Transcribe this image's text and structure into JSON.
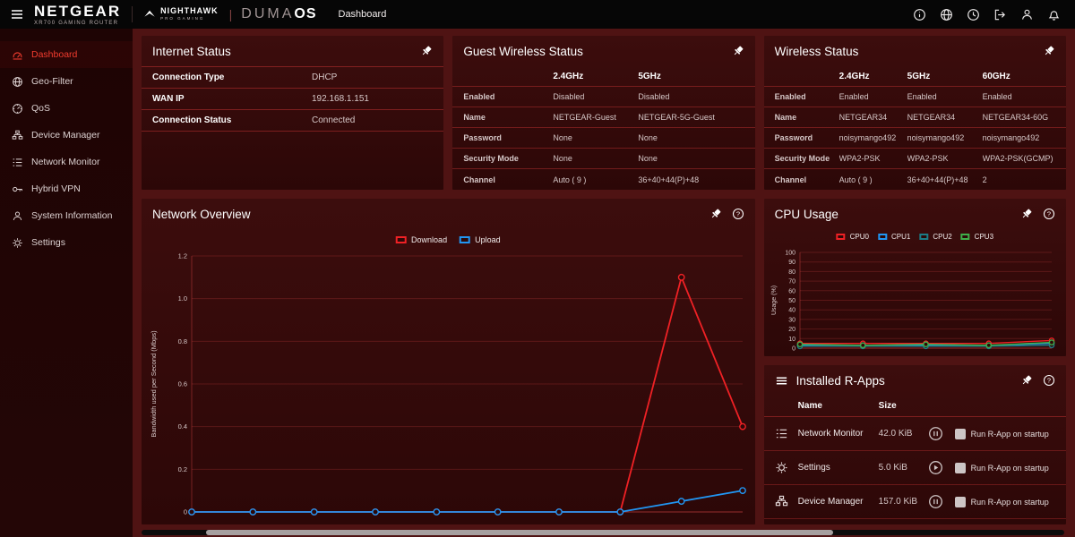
{
  "topbar": {
    "brand": {
      "netgear": "NETGEAR",
      "model": "XR700 GAMING ROUTER",
      "nighthawk": "NIGHTHAWK",
      "nighthawk_sub": "PRO GAMING",
      "duma": "DUMA",
      "os": "OS"
    },
    "page_title": "Dashboard",
    "icons": [
      {
        "name": "info-icon"
      },
      {
        "name": "language-globe-icon"
      },
      {
        "name": "history-icon"
      },
      {
        "name": "logout-icon"
      },
      {
        "name": "account-icon"
      },
      {
        "name": "notifications-bell-icon"
      }
    ]
  },
  "sidebar": {
    "items": [
      {
        "label": "Dashboard",
        "icon": "dashboard-icon",
        "active": true
      },
      {
        "label": "Geo-Filter",
        "icon": "geo-filter-icon",
        "active": false
      },
      {
        "label": "QoS",
        "icon": "qos-icon",
        "active": false
      },
      {
        "label": "Device Manager",
        "icon": "device-manager-icon",
        "active": false
      },
      {
        "label": "Network Monitor",
        "icon": "network-monitor-icon",
        "active": false
      },
      {
        "label": "Hybrid VPN",
        "icon": "vpn-icon",
        "active": false
      },
      {
        "label": "System Information",
        "icon": "system-info-icon",
        "active": false
      },
      {
        "label": "Settings",
        "icon": "settings-icon",
        "active": false
      }
    ]
  },
  "panels": {
    "internet_status": {
      "title": "Internet Status",
      "rows": [
        {
          "label": "Connection Type",
          "value": "DHCP"
        },
        {
          "label": "WAN IP",
          "value": "192.168.1.151"
        },
        {
          "label": "Connection Status",
          "value": "Connected"
        }
      ]
    },
    "guest_wireless": {
      "title": "Guest Wireless Status",
      "columns": [
        "2.4GHz",
        "5GHz"
      ],
      "rows": [
        {
          "label": "Enabled",
          "values": [
            "Disabled",
            "Disabled"
          ]
        },
        {
          "label": "Name",
          "values": [
            "NETGEAR-Guest",
            "NETGEAR-5G-Guest"
          ]
        },
        {
          "label": "Password",
          "values": [
            "None",
            "None"
          ]
        },
        {
          "label": "Security Mode",
          "values": [
            "None",
            "None"
          ]
        },
        {
          "label": "Channel",
          "values": [
            "Auto ( 9 )",
            "36+40+44(P)+48"
          ]
        }
      ]
    },
    "wireless": {
      "title": "Wireless Status",
      "columns": [
        "2.4GHz",
        "5GHz",
        "60GHz"
      ],
      "rows": [
        {
          "label": "Enabled",
          "values": [
            "Enabled",
            "Enabled",
            "Enabled"
          ]
        },
        {
          "label": "Name",
          "values": [
            "NETGEAR34",
            "NETGEAR34",
            "NETGEAR34-60G"
          ]
        },
        {
          "label": "Password",
          "values": [
            "noisymango492",
            "noisymango492",
            "noisymango492"
          ]
        },
        {
          "label": "Security Mode",
          "values": [
            "WPA2-PSK",
            "WPA2-PSK",
            "WPA2-PSK(GCMP)"
          ]
        },
        {
          "label": "Channel",
          "values": [
            "Auto ( 9 )",
            "36+40+44(P)+48",
            "2"
          ]
        }
      ]
    },
    "network_overview": {
      "title": "Network Overview"
    },
    "cpu_usage": {
      "title": "CPU Usage"
    },
    "r_apps": {
      "title": "Installed R-Apps",
      "columns": [
        "Name",
        "Size"
      ],
      "startup_label": "Run R-App on startup",
      "rows": [
        {
          "name": "Network Monitor",
          "size": "42.0 KiB",
          "control": "pause",
          "icon": "network-monitor-icon"
        },
        {
          "name": "Settings",
          "size": "5.0 KiB",
          "control": "play",
          "icon": "settings-icon"
        },
        {
          "name": "Device Manager",
          "size": "157.0 KiB",
          "control": "pause",
          "icon": "device-manager-icon"
        }
      ]
    }
  },
  "chart_data": [
    {
      "name": "network_overview",
      "type": "line",
      "title": "Network Overview",
      "xlabel": "",
      "ylabel": "Bandwidth used per Second (Mbps)",
      "ylim": [
        0,
        1.2
      ],
      "yticks": [
        0,
        0.2,
        0.4,
        0.6,
        0.8,
        1.0,
        1.2
      ],
      "ytick_labels": [
        "0",
        "0.2",
        "0.4",
        "0.6",
        "0.8",
        "1.0",
        "1.2"
      ],
      "x": [
        0,
        1,
        2,
        3,
        4,
        5,
        6,
        7,
        8,
        9
      ],
      "series": [
        {
          "name": "Download",
          "color": "#ef2125",
          "values": [
            0,
            0,
            0,
            0,
            0,
            0,
            0,
            0,
            1.1,
            0.4
          ]
        },
        {
          "name": "Upload",
          "color": "#2196f3",
          "values": [
            0,
            0,
            0,
            0,
            0,
            0,
            0,
            0,
            0.05,
            0.1
          ]
        }
      ],
      "legend_position": "top",
      "grid": true
    },
    {
      "name": "cpu_usage",
      "type": "line",
      "title": "CPU Usage",
      "xlabel": "",
      "ylabel": "Usage (%)",
      "ylim": [
        0,
        100
      ],
      "yticks": [
        0,
        10,
        20,
        30,
        40,
        50,
        60,
        70,
        80,
        90,
        100
      ],
      "ytick_labels": [
        "0",
        "10",
        "20",
        "30",
        "40",
        "50",
        "60",
        "70",
        "80",
        "90",
        "100"
      ],
      "x": [
        0,
        1,
        2,
        3,
        4
      ],
      "series": [
        {
          "name": "CPU0",
          "color": "#ef2125",
          "values": [
            5,
            5,
            5,
            5,
            8
          ]
        },
        {
          "name": "CPU1",
          "color": "#2196f3",
          "values": [
            3,
            3,
            3,
            3,
            5
          ]
        },
        {
          "name": "CPU2",
          "color": "#1c7c86",
          "values": [
            2,
            2,
            2,
            2,
            3
          ]
        },
        {
          "name": "CPU3",
          "color": "#3fae49",
          "values": [
            4,
            3,
            4,
            3,
            6
          ]
        }
      ],
      "legend_position": "top",
      "grid": true
    }
  ],
  "colors": {
    "accent_red": "#f23c2e",
    "panel_background": "#3c0d0d",
    "main_background": "#4f1313"
  }
}
